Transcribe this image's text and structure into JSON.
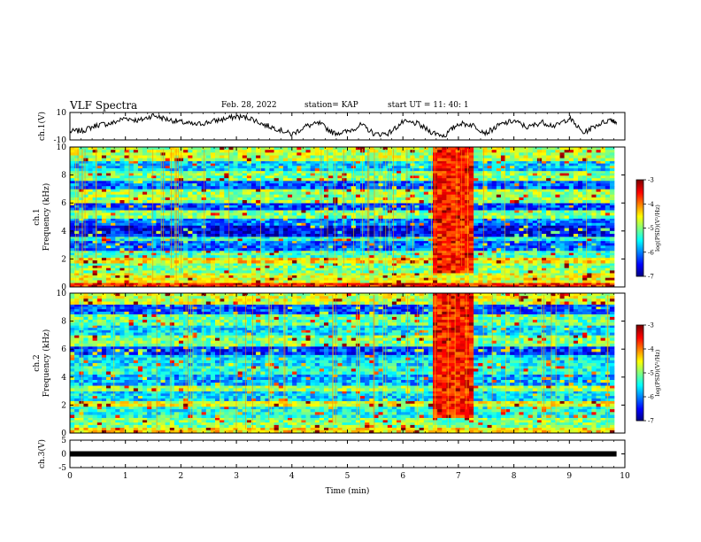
{
  "header": {
    "title": "VLF Spectra",
    "date": "Feb. 28, 2022",
    "station": "station= KAP",
    "start_ut": "start  UT =   11: 40: 1"
  },
  "chart_data": [
    {
      "type": "line",
      "name": "ch1-waveform",
      "ylabel": "ch.1(V)",
      "ylim": [
        -10,
        10
      ],
      "yticks": [
        "10",
        "-10"
      ],
      "xlim": [
        0,
        10
      ],
      "x": [
        0,
        0.25,
        0.5,
        0.75,
        1.0,
        1.25,
        1.5,
        1.75,
        2.0,
        2.25,
        2.5,
        2.75,
        3.0,
        3.25,
        3.5,
        3.75,
        4.0,
        4.25,
        4.5,
        4.75,
        5.0,
        5.25,
        5.5,
        5.75,
        6.0,
        6.25,
        6.5,
        6.75,
        7.0,
        7.25,
        7.5,
        7.75,
        8.0,
        8.25,
        8.5,
        8.75,
        9.0,
        9.25,
        9.5,
        9.75,
        9.85
      ],
      "values": [
        -4,
        -3,
        1,
        2,
        6,
        4,
        8,
        5,
        3,
        1,
        3,
        5,
        7,
        6,
        1,
        -2,
        -6,
        0,
        2,
        -5,
        -4,
        1,
        -6,
        -5,
        3,
        2,
        -4,
        -7,
        2,
        1,
        -5,
        1,
        4,
        -1,
        3,
        0,
        6,
        -5,
        1,
        5,
        3
      ]
    },
    {
      "type": "heatmap",
      "name": "ch1-spectrogram",
      "title": "ch.1",
      "ylabel": "Frequency (kHz)",
      "ylim": [
        0,
        10
      ],
      "yticks": [
        "0",
        "2",
        "4",
        "6",
        "8",
        "10"
      ],
      "xlim": [
        0,
        10
      ],
      "colorbar": {
        "label": "log(PSD)(V²/Hz)",
        "range": [
          -7,
          -3
        ],
        "ticks": [
          "-3",
          "-4",
          "-5",
          "-6",
          "-7"
        ]
      },
      "burst_interval_min": [
        6.6,
        7.3
      ],
      "bands_khz": [
        {
          "range": [
            0.0,
            0.3
          ],
          "level": -3.6
        },
        {
          "range": [
            0.3,
            1.0
          ],
          "level": -4.6
        },
        {
          "range": [
            1.0,
            1.7
          ],
          "level": -5.0
        },
        {
          "range": [
            1.7,
            2.1
          ],
          "level": -4.4
        },
        {
          "range": [
            2.1,
            2.6
          ],
          "level": -5.2
        },
        {
          "range": [
            2.6,
            3.3
          ],
          "level": -6.1
        },
        {
          "range": [
            3.3,
            3.6
          ],
          "level": -5.4
        },
        {
          "range": [
            3.6,
            4.4
          ],
          "level": -6.5
        },
        {
          "range": [
            4.4,
            4.9
          ],
          "level": -6.0
        },
        {
          "range": [
            4.9,
            5.5
          ],
          "level": -5.0
        },
        {
          "range": [
            5.5,
            6.0
          ],
          "level": -6.2
        },
        {
          "range": [
            6.0,
            7.0
          ],
          "level": -4.9
        },
        {
          "range": [
            7.0,
            7.6
          ],
          "level": -6.1
        },
        {
          "range": [
            7.6,
            8.3
          ],
          "level": -5.0
        },
        {
          "range": [
            8.3,
            9.0
          ],
          "level": -5.7
        },
        {
          "range": [
            9.0,
            10.0
          ],
          "level": -4.8
        }
      ]
    },
    {
      "type": "heatmap",
      "name": "ch2-spectrogram",
      "title": "ch.2",
      "ylabel": "Frequency (kHz)",
      "ylim": [
        0,
        10
      ],
      "yticks": [
        "0",
        "2",
        "4",
        "6",
        "8",
        "10"
      ],
      "xlim": [
        0,
        10
      ],
      "colorbar": {
        "label": "log(PSD)(V²/Hz)",
        "range": [
          -7,
          -3
        ],
        "ticks": [
          "-3",
          "-4",
          "-5",
          "-6",
          "-7"
        ]
      },
      "burst_interval_min": [
        6.6,
        7.3
      ],
      "bands_khz": [
        {
          "range": [
            0.0,
            0.4
          ],
          "level": -4.4
        },
        {
          "range": [
            0.4,
            1.1
          ],
          "level": -5.0
        },
        {
          "range": [
            1.1,
            1.9
          ],
          "level": -5.4
        },
        {
          "range": [
            1.9,
            2.3
          ],
          "level": -4.6
        },
        {
          "range": [
            2.3,
            3.0
          ],
          "level": -5.6
        },
        {
          "range": [
            3.0,
            3.4
          ],
          "level": -4.9
        },
        {
          "range": [
            3.4,
            4.2
          ],
          "level": -5.8
        },
        {
          "range": [
            4.2,
            4.8
          ],
          "level": -5.3
        },
        {
          "range": [
            4.8,
            5.6
          ],
          "level": -5.6
        },
        {
          "range": [
            5.6,
            6.2
          ],
          "level": -6.3
        },
        {
          "range": [
            6.2,
            7.0
          ],
          "level": -5.0
        },
        {
          "range": [
            7.0,
            7.7
          ],
          "level": -5.6
        },
        {
          "range": [
            7.7,
            8.5
          ],
          "level": -5.1
        },
        {
          "range": [
            8.5,
            9.2
          ],
          "level": -6.2
        },
        {
          "range": [
            9.2,
            10.0
          ],
          "level": -4.7
        }
      ]
    },
    {
      "type": "line",
      "name": "ch3-waveform",
      "ylabel": "ch.3(V)",
      "ylim": [
        -5,
        5
      ],
      "yticks": [
        "5",
        "0",
        "-5"
      ],
      "xlim": [
        0,
        10
      ],
      "x": [
        0,
        9.85
      ],
      "values": [
        0,
        0
      ],
      "xlabel": "Time (min)",
      "xticks": [
        "0",
        "1",
        "2",
        "3",
        "4",
        "5",
        "6",
        "7",
        "8",
        "9",
        "10"
      ]
    }
  ]
}
